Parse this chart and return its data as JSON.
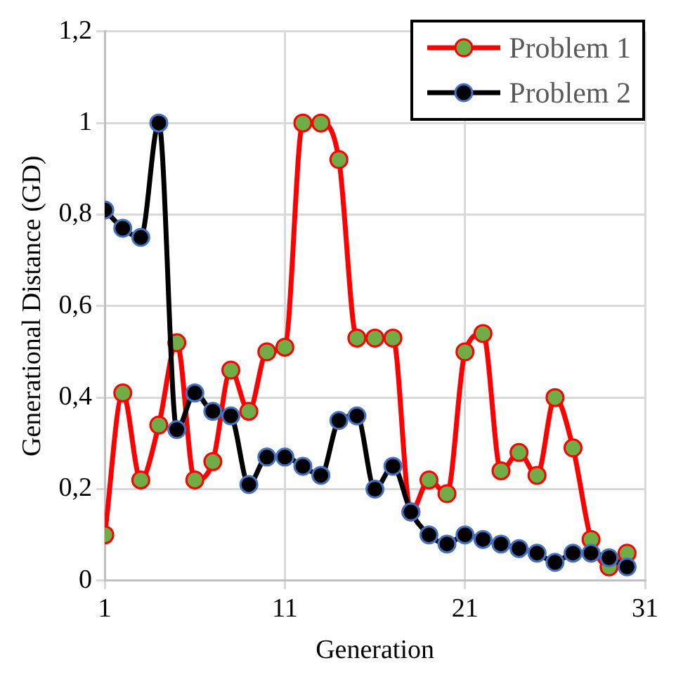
{
  "chart_data": {
    "type": "line",
    "xlabel": "Generation",
    "ylabel": "Generational Distance (GD)",
    "x": [
      1,
      2,
      3,
      4,
      5,
      6,
      7,
      8,
      9,
      10,
      11,
      12,
      13,
      14,
      15,
      16,
      17,
      18,
      19,
      20,
      21,
      22,
      23,
      24,
      25,
      26,
      27,
      28,
      29,
      30
    ],
    "series": [
      {
        "name": "Problem 1",
        "color": "#ff0000",
        "values": [
          0.1,
          0.41,
          0.22,
          0.34,
          0.52,
          0.22,
          0.26,
          0.46,
          0.37,
          0.5,
          0.51,
          1.0,
          1.0,
          0.92,
          0.53,
          0.53,
          0.53,
          0.15,
          0.22,
          0.19,
          0.5,
          0.54,
          0.24,
          0.28,
          0.23,
          0.4,
          0.29,
          0.09,
          0.03,
          0.06
        ]
      },
      {
        "name": "Problem 2",
        "color": "#000000",
        "values": [
          0.81,
          0.77,
          0.75,
          1.0,
          0.33,
          0.41,
          0.37,
          0.36,
          0.21,
          0.27,
          0.27,
          0.25,
          0.23,
          0.35,
          0.36,
          0.2,
          0.25,
          0.15,
          0.1,
          0.08,
          0.1,
          0.09,
          0.08,
          0.07,
          0.06,
          0.04,
          0.06,
          0.06,
          0.05,
          0.03
        ]
      }
    ],
    "xlim": [
      1,
      31
    ],
    "xticks": [
      1,
      11,
      21,
      31
    ],
    "ylim": [
      0,
      1.2
    ],
    "yticks": [
      0,
      {
        "value": 0.2,
        "label": "0,2"
      },
      {
        "value": 0.4,
        "label": "0,4"
      },
      {
        "value": 0.6,
        "label": "0,6"
      },
      {
        "value": 0.8,
        "label": "0,8"
      },
      1,
      {
        "value": 1.2,
        "label": "1,2"
      }
    ],
    "grid": true,
    "legend": "top right",
    "marker": "circle",
    "line_style": "solid"
  }
}
